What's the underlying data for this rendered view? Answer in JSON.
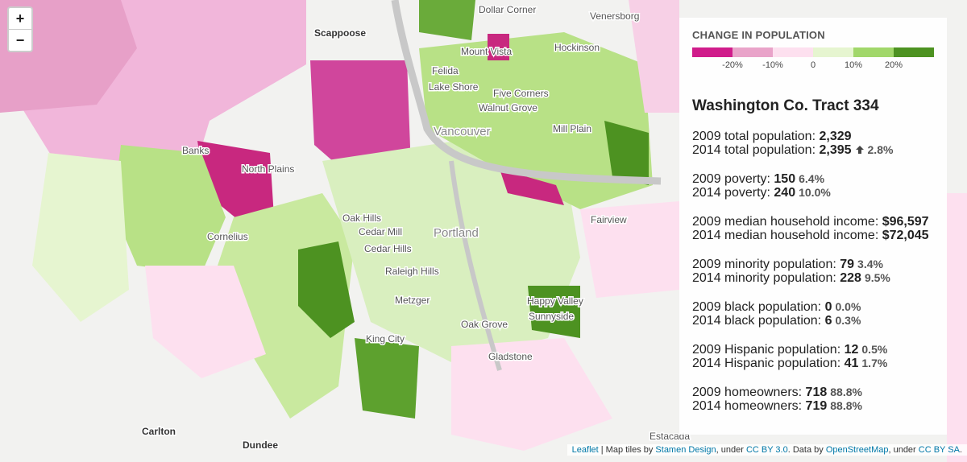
{
  "zoom": {
    "in": "+",
    "out": "−"
  },
  "legend": {
    "title": "CHANGE IN POPULATION",
    "colors": [
      "#d01c8b",
      "#e9a3c9",
      "#fde0ef",
      "#e6f5d0",
      "#a1d76a",
      "#4d9221"
    ],
    "ticks": [
      "-20%",
      "-10%",
      "0",
      "10%",
      "20%"
    ]
  },
  "panel": {
    "title": "Washington Co. Tract 334",
    "groups": [
      [
        {
          "label": "2009 total population:",
          "value": "2,329"
        },
        {
          "label": "2014 total population:",
          "value": "2,395",
          "change": "2.8%"
        }
      ],
      [
        {
          "label": "2009 poverty:",
          "value": "150",
          "pct": "6.4%"
        },
        {
          "label": "2014 poverty:",
          "value": "240",
          "pct": "10.0%"
        }
      ],
      [
        {
          "label": "2009 median household income:",
          "value": "$96,597"
        },
        {
          "label": "2014 median household income:",
          "value": "$72,045"
        }
      ],
      [
        {
          "label": "2009 minority population:",
          "value": "79",
          "pct": "3.4%"
        },
        {
          "label": "2014 minority population:",
          "value": "228",
          "pct": "9.5%"
        }
      ],
      [
        {
          "label": "2009 black population:",
          "value": "0",
          "pct": "0.0%"
        },
        {
          "label": "2014 black population:",
          "value": "6",
          "pct": "0.3%"
        }
      ],
      [
        {
          "label": "2009 Hispanic population:",
          "value": "12",
          "pct": "0.5%"
        },
        {
          "label": "2014 Hispanic population:",
          "value": "41",
          "pct": "1.7%"
        }
      ],
      [
        {
          "label": "2009 homeowners:",
          "value": "718",
          "pct": "88.8%"
        },
        {
          "label": "2014 homeowners:",
          "value": "719",
          "pct": "88.8%"
        }
      ]
    ]
  },
  "places": [
    "Dollar Corner",
    "Venersborg",
    "Scappoose",
    "Mount Vista",
    "Hockinson",
    "Felida",
    "Lake Shore",
    "Five Corners",
    "Walnut Grove",
    "Vancouver",
    "Mill Plain",
    "Banks",
    "North Plains",
    "Oak Hills",
    "Cedar Mill",
    "Cedar Hills",
    "Raleigh Hills",
    "Portland",
    "Cornelius",
    "Fairview",
    "Metzger",
    "Happy Valley",
    "Sunnyside",
    "Oak Grove",
    "King City",
    "Gladstone",
    "Carlton",
    "Dundee",
    "Estacada"
  ],
  "attribution": [
    {
      "text": "Leaflet",
      "link": true
    },
    {
      "text": " | Map tiles by "
    },
    {
      "text": "Stamen Design",
      "link": true
    },
    {
      "text": ", under "
    },
    {
      "text": "CC BY 3.0",
      "link": true
    },
    {
      "text": ". Data by "
    },
    {
      "text": "OpenStreetMap",
      "link": true
    },
    {
      "text": ", under "
    },
    {
      "text": "CC BY SA",
      "link": true
    },
    {
      "text": "."
    }
  ]
}
